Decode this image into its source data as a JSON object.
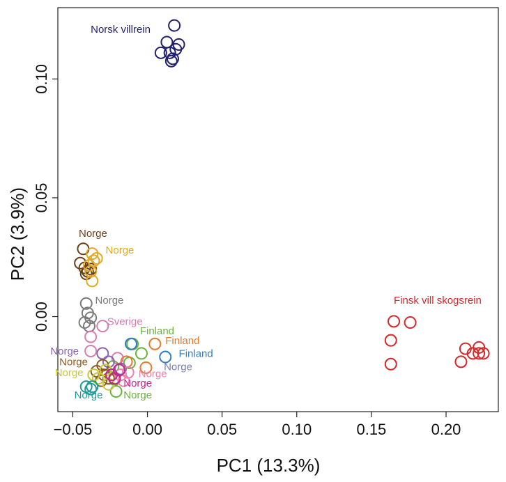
{
  "chart_data": {
    "type": "scatter",
    "title": "",
    "xlabel": "PC1 (13.3%)",
    "ylabel": "PC2 (3.9%)",
    "xlim": [
      -0.06,
      0.235
    ],
    "ylim": [
      -0.04,
      0.13
    ],
    "grid": false,
    "legend": "none",
    "xticks": [
      -0.05,
      0.0,
      0.05,
      0.1,
      0.15,
      0.2
    ],
    "xtick_labels": [
      "−0.05",
      "0.00",
      "0.05",
      "0.10",
      "0.15",
      "0.20"
    ],
    "yticks": [
      0.0,
      0.05,
      0.1
    ],
    "ytick_labels": [
      "0.00",
      "0.05",
      "0.10"
    ],
    "series": [
      {
        "color": "#1f1f6e",
        "points": [
          [
            0.018,
            0.1225
          ],
          [
            0.013,
            0.1155
          ],
          [
            0.019,
            0.1125
          ],
          [
            0.021,
            0.1145
          ],
          [
            0.009,
            0.111
          ],
          [
            0.015,
            0.111
          ],
          [
            0.017,
            0.1085
          ],
          [
            0.016,
            0.1075
          ]
        ]
      },
      {
        "color": "#d62728",
        "points": [
          [
            0.165,
            -0.002
          ],
          [
            0.176,
            -0.0025
          ],
          [
            0.163,
            -0.01
          ],
          [
            0.163,
            -0.02
          ],
          [
            0.213,
            -0.0135
          ],
          [
            0.222,
            -0.013
          ],
          [
            0.218,
            -0.0155
          ],
          [
            0.225,
            -0.0155
          ],
          [
            0.222,
            -0.0155
          ],
          [
            0.21,
            -0.019
          ]
        ]
      },
      {
        "color": "#6b3f16",
        "points": [
          [
            -0.043,
            0.0285
          ],
          [
            -0.045,
            0.0225
          ],
          [
            -0.042,
            0.0205
          ],
          [
            -0.04,
            0.019
          ],
          [
            -0.038,
            0.02
          ],
          [
            -0.041,
            0.018
          ]
        ]
      },
      {
        "color": "#e3a823",
        "points": [
          [
            -0.037,
            0.0265
          ],
          [
            -0.034,
            0.0245
          ],
          [
            -0.036,
            0.0235
          ],
          [
            -0.039,
            0.0215
          ],
          [
            -0.038,
            0.019
          ],
          [
            -0.037,
            0.015
          ]
        ]
      },
      {
        "color": "#7b7b7b",
        "points": [
          [
            -0.041,
            0.0055
          ],
          [
            -0.04,
            0.0015
          ],
          [
            -0.038,
            -0.0005
          ],
          [
            -0.042,
            -0.0025
          ],
          [
            -0.039,
            -0.004
          ]
        ]
      },
      {
        "color": "#d77bb2",
        "points": [
          [
            -0.038,
            -0.0085
          ],
          [
            -0.03,
            -0.004
          ],
          [
            -0.038,
            -0.0145
          ],
          [
            -0.02,
            -0.0175
          ]
        ]
      },
      {
        "color": "#6ab23e",
        "points": [
          [
            -0.01,
            -0.0115
          ],
          [
            -0.004,
            -0.0155
          ],
          [
            -0.012,
            -0.0195
          ],
          [
            -0.023,
            -0.021
          ],
          [
            -0.022,
            -0.0265
          ],
          [
            -0.021,
            -0.0315
          ]
        ]
      },
      {
        "color": "#e8782b",
        "points": [
          [
            0.005,
            -0.0115
          ],
          [
            -0.001,
            -0.0215
          ],
          [
            -0.014,
            -0.019
          ]
        ]
      },
      {
        "color": "#2f7fc1",
        "points": [
          [
            0.012,
            -0.017
          ],
          [
            -0.011,
            -0.0115
          ]
        ]
      },
      {
        "color": "#8a62b0",
        "points": [
          [
            -0.03,
            -0.0155
          ],
          [
            -0.026,
            -0.019
          ],
          [
            -0.018,
            -0.022
          ]
        ]
      },
      {
        "color": "#8e5a1f",
        "points": [
          [
            -0.03,
            -0.0205
          ],
          [
            -0.034,
            -0.023
          ],
          [
            -0.029,
            -0.0245
          ],
          [
            -0.026,
            -0.026
          ],
          [
            -0.031,
            -0.027
          ]
        ]
      },
      {
        "color": "#c8c83a",
        "points": [
          [
            -0.036,
            -0.0245
          ],
          [
            -0.033,
            -0.026
          ],
          [
            -0.028,
            -0.0225
          ],
          [
            -0.026,
            -0.0285
          ]
        ]
      },
      {
        "color": "#ef7fb0",
        "points": [
          [
            -0.013,
            -0.0235
          ],
          [
            -0.016,
            -0.027
          ],
          [
            -0.018,
            -0.0245
          ]
        ]
      },
      {
        "color": "#c2268c",
        "points": [
          [
            -0.024,
            -0.0245
          ],
          [
            -0.022,
            -0.026
          ],
          [
            -0.019,
            -0.0225
          ]
        ]
      },
      {
        "color": "#1f9a9a",
        "points": [
          [
            -0.041,
            -0.0295
          ],
          [
            -0.038,
            -0.0305
          ],
          [
            -0.037,
            -0.0295
          ]
        ]
      }
    ],
    "annotations": [
      {
        "text": "Norsk villrein",
        "x": -0.038,
        "y": 0.1195,
        "color": "#1f1f6e"
      },
      {
        "text": "Finsk vill skogsrein",
        "x": 0.165,
        "y": 0.0055,
        "color": "#d62728"
      },
      {
        "text": "Norge",
        "x": -0.046,
        "y": 0.0335,
        "color": "#6b3f16"
      },
      {
        "text": "Norge",
        "x": -0.028,
        "y": 0.0265,
        "color": "#e3a823"
      },
      {
        "text": "Norge",
        "x": -0.035,
        "y": 0.0055,
        "color": "#7b7b7b"
      },
      {
        "text": "Sverige",
        "x": -0.027,
        "y": -0.0035,
        "color": "#d77bb2"
      },
      {
        "text": "Finland",
        "x": -0.005,
        "y": -0.0075,
        "color": "#6ab23e"
      },
      {
        "text": "Finland",
        "x": 0.012,
        "y": -0.0115,
        "color": "#e8782b"
      },
      {
        "text": "Finland",
        "x": 0.021,
        "y": -0.017,
        "color": "#2f7fc1"
      },
      {
        "text": "Norge",
        "x": 0.011,
        "y": -0.0225,
        "color": "#7b7fb5"
      },
      {
        "text": "Norge",
        "x": -0.065,
        "y": -0.016,
        "color": "#8a62b0"
      },
      {
        "text": "Norge",
        "x": -0.059,
        "y": -0.0205,
        "color": "#8e5a1f"
      },
      {
        "text": "Norge",
        "x": -0.062,
        "y": -0.025,
        "color": "#c8c83a"
      },
      {
        "text": "Norge",
        "x": -0.006,
        "y": -0.0255,
        "color": "#ef7fb0"
      },
      {
        "text": "Norge",
        "x": -0.016,
        "y": -0.0295,
        "color": "#c2268c"
      },
      {
        "text": "Norge",
        "x": -0.016,
        "y": -0.0345,
        "color": "#6ab23e"
      },
      {
        "text": "Norge",
        "x": -0.049,
        "y": -0.0345,
        "color": "#1f9a9a"
      }
    ]
  }
}
